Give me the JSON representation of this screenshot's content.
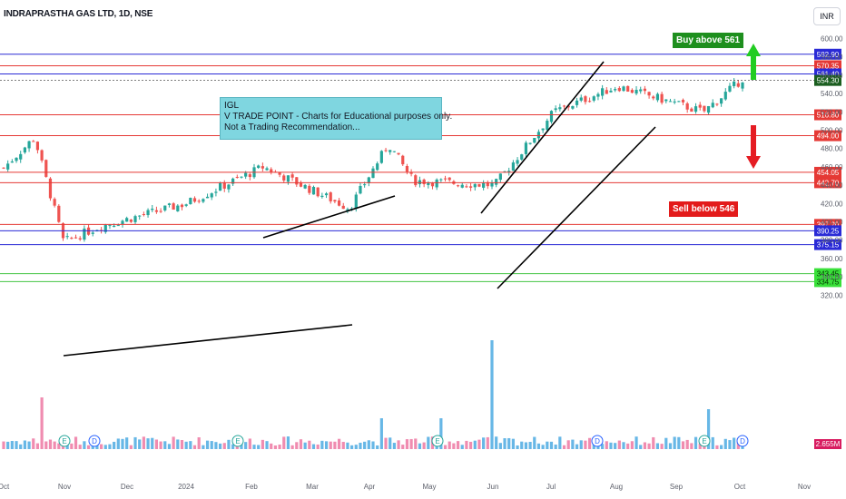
{
  "header": {
    "title": "INDRAPRASTHA GAS LTD, 1D, NSE",
    "currency": "INR"
  },
  "annotations": {
    "note_lines": [
      "IGL",
      "V TRADE POINT - Charts for Educational purposes only.",
      "Not a Trading Recommendation..."
    ],
    "buy_label": "Buy above 561",
    "sell_label": "Sell below 546"
  },
  "colors": {
    "up_candle": "#26a69a",
    "down_candle": "#ef5350",
    "blue_level": "#2a2ad6",
    "red_level": "#e53935",
    "green_level": "#43c443",
    "buy_arrow": "#22cc22",
    "sell_arrow": "#e51c23",
    "trendline": "#000000"
  },
  "chart_data": {
    "type": "candlestick",
    "symbol": "INDRAPRASTHA GAS LTD",
    "timeframe": "1D",
    "exchange": "NSE",
    "x_tick_labels": [
      "Oct",
      "Nov",
      "Dec",
      "2024",
      "Feb",
      "Mar",
      "Apr",
      "May",
      "Jun",
      "Jul",
      "Aug",
      "Sep",
      "Oct",
      "Nov"
    ],
    "y_tick_labels": [
      "600.00",
      "580.00",
      "560.00",
      "540.00",
      "520.00",
      "500.00",
      "480.00",
      "460.00",
      "440.00",
      "420.00",
      "400.00",
      "380.00",
      "360.00",
      "340.00",
      "320.00"
    ],
    "ylim": [
      312,
      610
    ],
    "horizontal_levels": [
      {
        "label": "582.90",
        "value": 582.9,
        "color": "blue"
      },
      {
        "label": "570.35",
        "value": 570.35,
        "color": "red"
      },
      {
        "label": "561.40",
        "value": 561.4,
        "color": "blue"
      },
      {
        "label": "554.30",
        "value": 554.3,
        "color": "current"
      },
      {
        "label": "516.80",
        "value": 516.8,
        "color": "red"
      },
      {
        "label": "494.00",
        "value": 494.0,
        "color": "red"
      },
      {
        "label": "454.05",
        "value": 454.05,
        "color": "red"
      },
      {
        "label": "442.70",
        "value": 442.7,
        "color": "red"
      },
      {
        "label": "397.20",
        "value": 397.2,
        "color": "red"
      },
      {
        "label": "390.25",
        "value": 390.25,
        "color": "blue"
      },
      {
        "label": "375.15",
        "value": 375.15,
        "color": "blue"
      },
      {
        "label": "343.45",
        "value": 343.45,
        "color": "green"
      },
      {
        "label": "334.75",
        "value": 334.75,
        "color": "green"
      }
    ],
    "volume_label": "2.655M",
    "event_markers": [
      "E",
      "D",
      "E",
      "E",
      "D",
      "E",
      "D"
    ],
    "series_anchor_prices": [
      {
        "month": "Oct",
        "price": 455
      },
      {
        "month": "Oct",
        "price": 492
      },
      {
        "month": "Nov",
        "price": 378
      },
      {
        "month": "Dec",
        "price": 395
      },
      {
        "month": "2024",
        "price": 420
      },
      {
        "month": "Feb",
        "price": 460
      },
      {
        "month": "Mar",
        "price": 415
      },
      {
        "month": "Apr",
        "price": 485
      },
      {
        "month": "May",
        "price": 445
      },
      {
        "month": "Jun",
        "price": 440
      },
      {
        "month": "Jul",
        "price": 520
      },
      {
        "month": "Aug",
        "price": 548
      },
      {
        "month": "Sep",
        "price": 520
      },
      {
        "month": "Oct",
        "price": 556
      }
    ]
  }
}
